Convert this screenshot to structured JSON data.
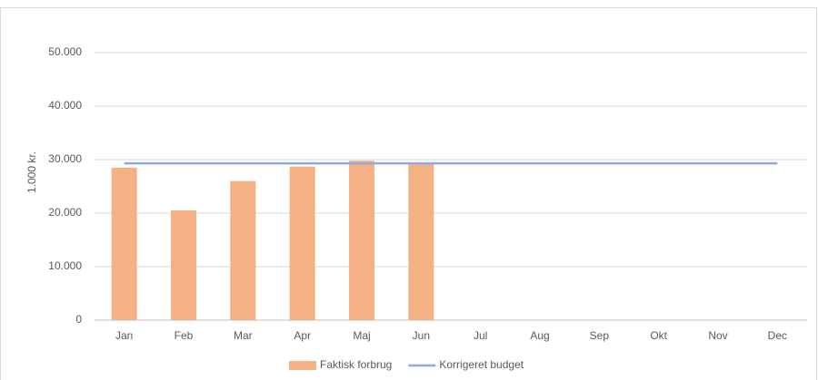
{
  "chart_data": {
    "type": "bar",
    "y_label": "1.000 kr.",
    "categories": [
      "Jan",
      "Feb",
      "Mar",
      "Apr",
      "Maj",
      "Jun",
      "Jul",
      "Aug",
      "Sep",
      "Okt",
      "Nov",
      "Dec"
    ],
    "series": [
      {
        "name": "Faktisk forbrug",
        "type": "bar",
        "color": "#f4b183",
        "values": [
          28500,
          20500,
          26000,
          28700,
          29800,
          29200,
          null,
          null,
          null,
          null,
          null,
          null
        ]
      },
      {
        "name": "Korrigeret budget",
        "type": "line",
        "color": "#8eaadb",
        "values": [
          29300,
          29300,
          29300,
          29300,
          29300,
          29300,
          29300,
          29300,
          29300,
          29300,
          29300,
          29300
        ]
      }
    ],
    "ylim": [
      0,
      50000
    ],
    "yticks": [
      0,
      {
        "value": 10000,
        "label": "10.000"
      },
      {
        "value": 20000,
        "label": "20.000"
      },
      {
        "value": 30000,
        "label": "30.000"
      },
      {
        "value": 40000,
        "label": "40.000"
      },
      {
        "value": 50000,
        "label": "50.000"
      }
    ],
    "grid": true,
    "legend": "bottom"
  }
}
